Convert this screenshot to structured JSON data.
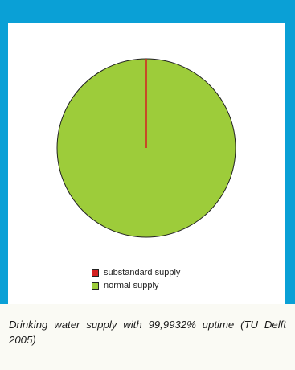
{
  "caption": "Drinking water supply with 99,9932% uptime (TU Delft 2005)",
  "chart_data": {
    "type": "pie",
    "title": "",
    "slices": [
      {
        "label": "substandard supply",
        "value": 0.0068,
        "color": "#d42020"
      },
      {
        "label": "normal supply",
        "value": 99.9932,
        "color": "#9dcc3a"
      }
    ],
    "legend_position": "bottom"
  }
}
